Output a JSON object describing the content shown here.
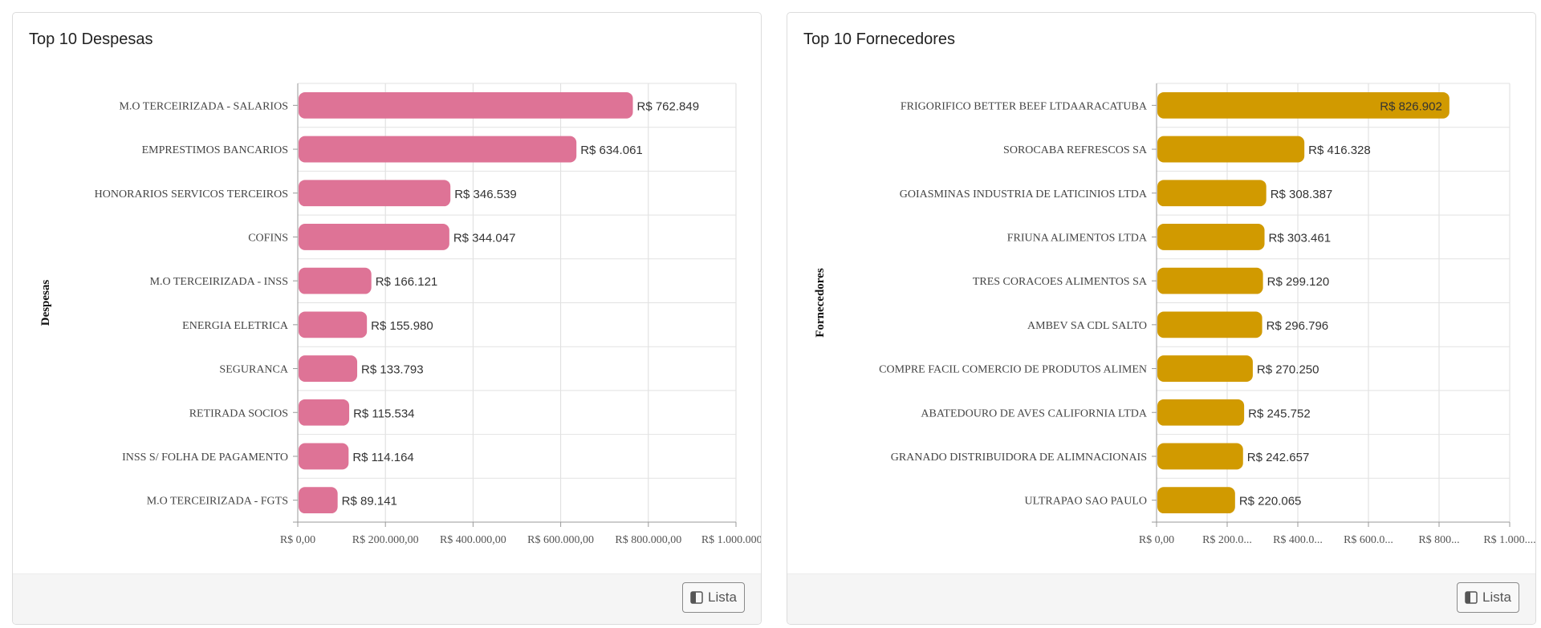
{
  "cards": [
    {
      "title": "Top 10 Despesas",
      "button_label": "Lista",
      "button_icon": "sidebar-panel-icon"
    },
    {
      "title": "Top 10 Fornecedores",
      "button_label": "Lista",
      "button_icon": "sidebar-panel-icon"
    }
  ],
  "chart_data": [
    {
      "type": "bar",
      "orientation": "horizontal",
      "title": "Top 10 Despesas",
      "ylabel": "Despesas",
      "xlabel": "",
      "categories": [
        "M.O TERCEIRIZADA - SALARIOS",
        "EMPRESTIMOS BANCARIOS",
        "HONORARIOS SERVICOS TERCEIROS",
        "COFINS",
        "M.O TERCEIRIZADA - INSS",
        "ENERGIA ELETRICA",
        "SEGURANCA",
        "RETIRADA SOCIOS",
        "INSS S/ FOLHA DE PAGAMENTO",
        "M.O TERCEIRIZADA - FGTS"
      ],
      "values": [
        762849,
        634061,
        346539,
        344047,
        166121,
        155980,
        133793,
        115534,
        114164,
        89141
      ],
      "value_labels": [
        "R$ 762.849",
        "R$ 634.061",
        "R$ 346.539",
        "R$ 344.047",
        "R$ 166.121",
        "R$ 155.980",
        "R$ 133.793",
        "R$ 115.534",
        "R$ 114.164",
        "R$ 89.141"
      ],
      "xticks": [
        0,
        200000,
        400000,
        600000,
        800000,
        1000000
      ],
      "xtick_labels": [
        "R$ 0,00",
        "R$ 200.000,00",
        "R$ 400.000,00",
        "R$ 600.000,00",
        "R$ 800.000,00",
        "R$ 1.000.000..."
      ],
      "xlim": [
        0,
        1000000
      ],
      "color": "#de7396",
      "grid": true
    },
    {
      "type": "bar",
      "orientation": "horizontal",
      "title": "Top 10 Fornecedores",
      "ylabel": "Fornecedores",
      "xlabel": "",
      "categories": [
        "FRIGORIFICO BETTER BEEF LTDAARACATUBA",
        "SOROCABA REFRESCOS SA",
        "GOIASMINAS INDUSTRIA DE LATICINIOS LTDA",
        "FRIUNA ALIMENTOS LTDA",
        "TRES CORACOES ALIMENTOS SA",
        "AMBEV SA CDL SALTO",
        "COMPRE FACIL COMERCIO DE PRODUTOS ALIMEN",
        "ABATEDOURO DE AVES CALIFORNIA LTDA",
        "GRANADO DISTRIBUIDORA DE ALIMNACIONAIS",
        "ULTRAPAO SAO PAULO"
      ],
      "values": [
        826902,
        416328,
        308387,
        303461,
        299120,
        296796,
        270250,
        245752,
        242657,
        220065
      ],
      "value_labels": [
        "R$ 826.902",
        "R$ 416.328",
        "R$ 308.387",
        "R$ 303.461",
        "R$ 299.120",
        "R$ 296.796",
        "R$ 270.250",
        "R$ 245.752",
        "R$ 242.657",
        "R$ 220.065"
      ],
      "xticks": [
        0,
        200000,
        400000,
        600000,
        800000,
        1000000
      ],
      "xtick_labels": [
        "R$ 0,00",
        "R$ 200.0...",
        "R$ 400.0...",
        "R$ 600.0...",
        "R$ 800...",
        "R$ 1.000...."
      ],
      "xlim": [
        0,
        1000000
      ],
      "color": "#d19a00",
      "grid": true
    }
  ]
}
